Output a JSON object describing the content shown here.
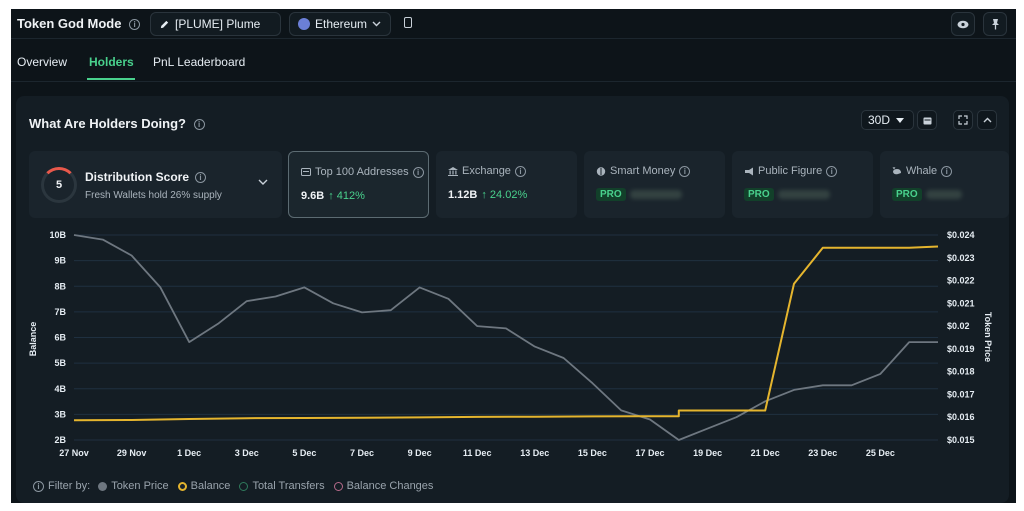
{
  "header": {
    "title": "Token God Mode",
    "token_label": "[PLUME] Plume",
    "chain_label": "Ethereum"
  },
  "tabs": [
    {
      "label": "Overview",
      "active": false
    },
    {
      "label": "Holders",
      "active": true
    },
    {
      "label": "PnL Leaderboard",
      "active": false
    }
  ],
  "card": {
    "title": "What Are Holders Doing?",
    "range": "30D"
  },
  "distribution": {
    "score": "5",
    "title": "Distribution Score",
    "subtitle": "Fresh Wallets hold 26% supply"
  },
  "metrics": [
    {
      "label": "Top 100 Addresses",
      "icon": "address-book-icon",
      "value": "9.6B",
      "change": "↑ 412%",
      "selected": true
    },
    {
      "label": "Exchange",
      "icon": "bank-icon",
      "value": "1.12B",
      "change": "↑ 24.02%",
      "selected": false
    },
    {
      "label": "Smart Money",
      "icon": "brain-icon",
      "badge": "PRO",
      "selected": false
    },
    {
      "label": "Public Figure",
      "icon": "megaphone-icon",
      "badge": "PRO",
      "selected": false
    },
    {
      "label": "Whale",
      "icon": "whale-icon",
      "badge": "PRO",
      "selected": false
    }
  ],
  "legend": {
    "prefix": "Filter by:",
    "items": [
      {
        "label": "Token Price",
        "color": "#6e7780",
        "filled": true
      },
      {
        "label": "Balance",
        "color": "#e5b52e",
        "filled": false
      },
      {
        "label": "Total Transfers",
        "color": "#2f7a5c",
        "filled": false
      },
      {
        "label": "Balance Changes",
        "color": "#b56a8a",
        "filled": false
      }
    ]
  },
  "colors": {
    "accent": "#49d18d",
    "balance_line": "#e5b52e",
    "price_line": "#6e7780"
  },
  "chart_data": {
    "type": "line",
    "title": "",
    "xlabel": "",
    "ylabel": "Balance",
    "y2label": "Token Price",
    "x_ticks": [
      "27 Nov",
      "29 Nov",
      "1 Dec",
      "3 Dec",
      "5 Dec",
      "7 Dec",
      "9 Dec",
      "11 Dec",
      "13 Dec",
      "15 Dec",
      "17 Dec",
      "19 Dec",
      "21 Dec",
      "23 Dec",
      "25 Dec"
    ],
    "y_ticks": [
      "2B",
      "3B",
      "4B",
      "5B",
      "6B",
      "7B",
      "8B",
      "9B",
      "10B"
    ],
    "y2_ticks": [
      "$0.015",
      "$0.016",
      "$0.017",
      "$0.018",
      "$0.019",
      "$0.02",
      "$0.021",
      "$0.022",
      "$0.023",
      "$0.024"
    ],
    "ylim": [
      2,
      10
    ],
    "y2lim": [
      0.015,
      0.024
    ],
    "grid": true,
    "series": [
      {
        "name": "Token Price",
        "axis": "right",
        "x": [
          0,
          1,
          2,
          3,
          4,
          5,
          6,
          7,
          8,
          9,
          10,
          11,
          12,
          13,
          14,
          15,
          16,
          17,
          18,
          19,
          20,
          21,
          22,
          23,
          24,
          25,
          26,
          27,
          28,
          29,
          30
        ],
        "y": [
          0.024,
          0.0238,
          0.0231,
          0.0217,
          0.0193,
          0.0201,
          0.0211,
          0.0213,
          0.0217,
          0.021,
          0.0206,
          0.0207,
          0.0217,
          0.0212,
          0.02,
          0.0199,
          0.0191,
          0.0186,
          0.0175,
          0.0163,
          0.0159,
          0.015,
          0.0155,
          0.016,
          0.0167,
          0.0172,
          0.0174,
          0.0174,
          0.0179,
          0.0193,
          0.0193
        ]
      },
      {
        "name": "Balance",
        "axis": "left",
        "x": [
          0,
          2,
          4,
          6,
          8,
          10,
          12,
          14,
          16,
          18,
          20,
          21,
          24,
          25,
          26,
          27,
          29,
          30
        ],
        "y": [
          2.77,
          2.78,
          2.82,
          2.85,
          2.86,
          2.87,
          2.88,
          2.9,
          2.91,
          2.92,
          2.93,
          3.15,
          3.15,
          8.1,
          9.5,
          9.5,
          9.5,
          9.55
        ]
      }
    ]
  }
}
